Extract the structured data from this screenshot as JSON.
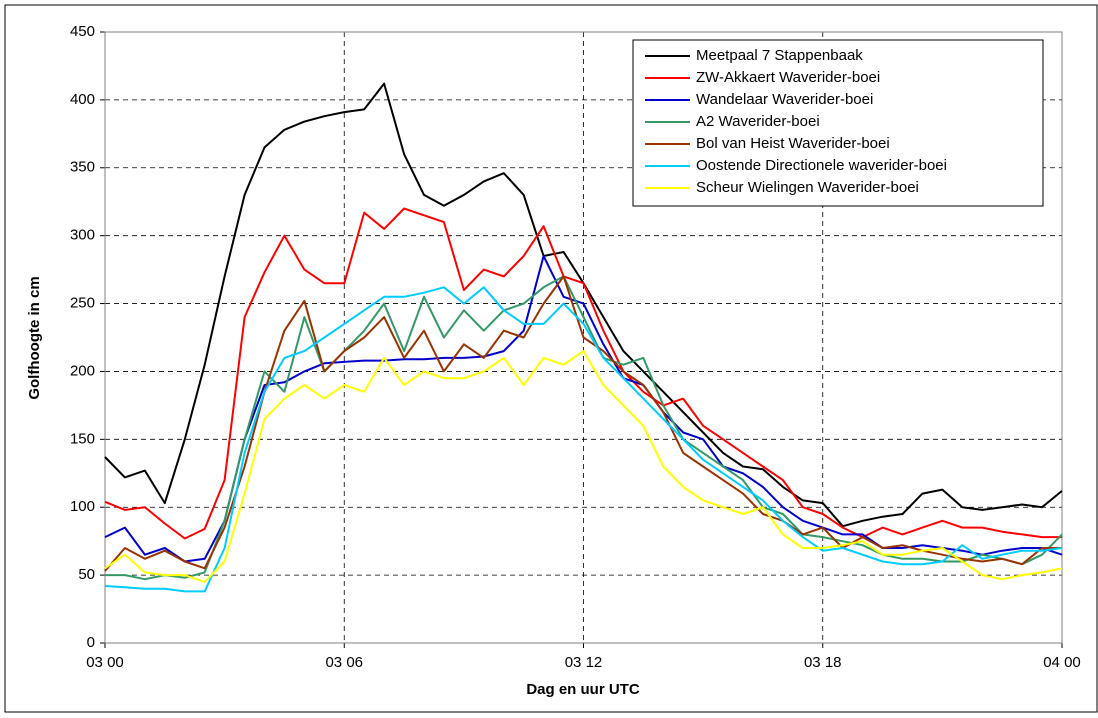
{
  "chart_data": {
    "type": "line",
    "x_label": "Dag en uur UTC",
    "y_label": "Golfhoogte in cm",
    "x": [
      0,
      0.5,
      1,
      1.5,
      2,
      2.5,
      3,
      3.5,
      4,
      4.5,
      5,
      5.5,
      6,
      6.5,
      7,
      7.5,
      8,
      8.5,
      9,
      9.5,
      10,
      10.5,
      11,
      11.5,
      12,
      12.5,
      13,
      13.5,
      14,
      14.5,
      15,
      15.5,
      16,
      16.5,
      17,
      17.5,
      18,
      18.5,
      19,
      19.5,
      20,
      20.5,
      21,
      21.5,
      22,
      22.5,
      23,
      23.5,
      24
    ],
    "xlim": [
      0,
      24
    ],
    "xticks": [
      {
        "value": 0,
        "label": "03 00"
      },
      {
        "value": 6,
        "label": "03 06"
      },
      {
        "value": 12,
        "label": "03 12"
      },
      {
        "value": 18,
        "label": "03 18"
      },
      {
        "value": 24,
        "label": "04 00"
      }
    ],
    "ylim": [
      0,
      450
    ],
    "yticks": [
      0,
      50,
      100,
      150,
      200,
      250,
      300,
      350,
      400,
      450
    ],
    "grid": true,
    "legend": "upper right",
    "series": [
      {
        "name": "Meetpaal 7 Stappenbaak",
        "color": "#000000",
        "values": [
          137,
          122,
          127,
          103,
          150,
          205,
          270,
          330,
          365,
          378,
          384,
          388,
          391,
          393,
          412,
          360,
          330,
          322,
          330,
          340,
          346,
          330,
          285,
          288,
          265,
          240,
          215,
          200,
          185,
          170,
          155,
          140,
          130,
          128,
          115,
          105,
          103,
          86,
          90,
          93,
          95,
          110,
          113,
          100,
          98,
          100,
          102,
          100,
          112
        ]
      },
      {
        "name": "ZW-Akkaert Waverider-boei",
        "color": "#ff0000",
        "values": [
          104,
          98,
          100,
          88,
          77,
          84,
          120,
          240,
          273,
          300,
          275,
          265,
          265,
          317,
          305,
          320,
          315,
          310,
          260,
          275,
          270,
          285,
          307,
          270,
          265,
          230,
          200,
          185,
          175,
          180,
          160,
          150,
          140,
          130,
          120,
          100,
          95,
          85,
          78,
          85,
          80,
          85,
          90,
          85,
          85,
          82,
          80,
          78,
          78
        ]
      },
      {
        "name": "Wandelaar Waverider-boei",
        "color": "#0000cc",
        "values": [
          78,
          85,
          65,
          70,
          60,
          62,
          90,
          150,
          190,
          192,
          200,
          206,
          207,
          208,
          208,
          209,
          209,
          210,
          210,
          211,
          215,
          230,
          285,
          255,
          250,
          220,
          195,
          190,
          170,
          155,
          150,
          130,
          125,
          115,
          100,
          90,
          85,
          80,
          80,
          70,
          70,
          72,
          70,
          68,
          65,
          68,
          70,
          70,
          65
        ]
      },
      {
        "name": "A2 Waverider-boei",
        "color": "#339966",
        "values": [
          50,
          50,
          47,
          50,
          48,
          52,
          90,
          150,
          200,
          185,
          240,
          200,
          215,
          230,
          250,
          215,
          255,
          225,
          245,
          230,
          245,
          250,
          262,
          270,
          240,
          210,
          205,
          210,
          175,
          150,
          140,
          130,
          120,
          100,
          95,
          80,
          78,
          75,
          72,
          65,
          62,
          62,
          60,
          60,
          65,
          62,
          58,
          65,
          80
        ]
      },
      {
        "name": "Bol van Heist Waverider-boei",
        "color": "#993300",
        "values": [
          53,
          70,
          62,
          68,
          60,
          55,
          85,
          130,
          185,
          230,
          252,
          200,
          215,
          225,
          240,
          210,
          230,
          200,
          220,
          210,
          230,
          225,
          250,
          270,
          225,
          215,
          200,
          190,
          170,
          140,
          130,
          120,
          110,
          95,
          90,
          80,
          85,
          70,
          78,
          70,
          72,
          68,
          65,
          62,
          60,
          62,
          58,
          70,
          70
        ]
      },
      {
        "name": "Oostende Directionele waverider-boei",
        "color": "#00ccff",
        "values": [
          42,
          41,
          40,
          40,
          38,
          38,
          70,
          140,
          185,
          210,
          215,
          225,
          235,
          245,
          255,
          255,
          258,
          262,
          250,
          262,
          245,
          235,
          235,
          250,
          235,
          210,
          195,
          180,
          165,
          150,
          135,
          125,
          115,
          105,
          90,
          78,
          68,
          70,
          65,
          60,
          58,
          58,
          60,
          72,
          62,
          65,
          68,
          68,
          70
        ]
      },
      {
        "name": "Scheur Wielingen Waverider-boei",
        "color": "#ffff00",
        "values": [
          55,
          65,
          52,
          50,
          50,
          45,
          60,
          110,
          165,
          180,
          190,
          180,
          190,
          185,
          210,
          190,
          200,
          195,
          195,
          200,
          210,
          190,
          210,
          205,
          215,
          190,
          175,
          160,
          130,
          115,
          105,
          100,
          95,
          100,
          80,
          70,
          70,
          72,
          75,
          65,
          65,
          68,
          70,
          60,
          50,
          47,
          50,
          52,
          55
        ]
      }
    ]
  }
}
